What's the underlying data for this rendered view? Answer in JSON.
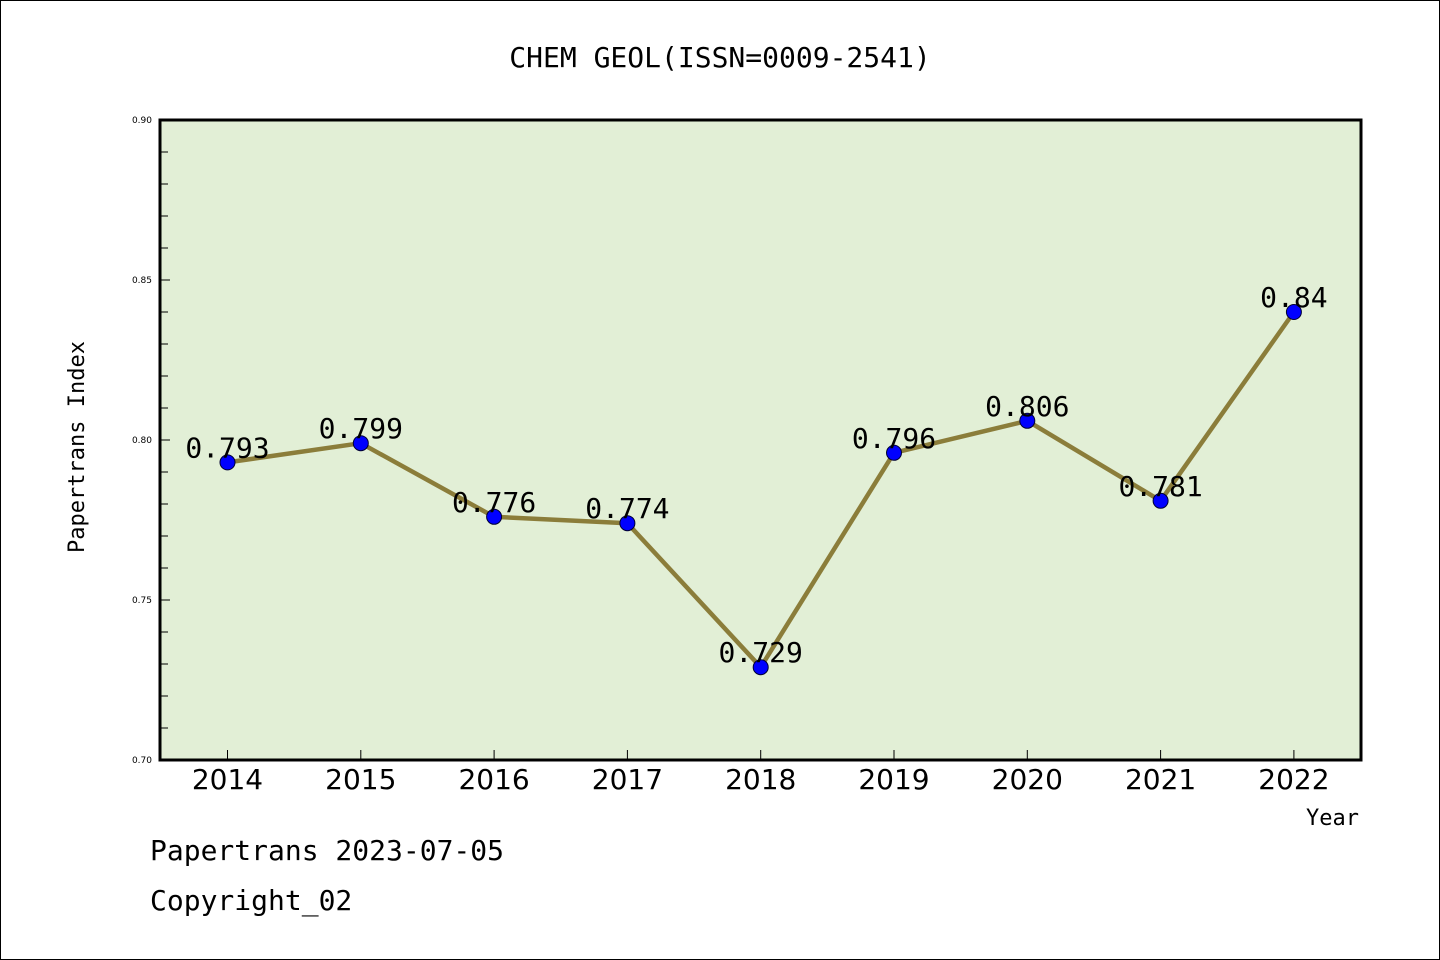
{
  "chart_data": {
    "type": "line",
    "title": "CHEM GEOL(ISSN=0009-2541)",
    "xlabel": "Year",
    "ylabel": "Papertrans Index",
    "categories": [
      "2014",
      "2015",
      "2016",
      "2017",
      "2018",
      "2019",
      "2020",
      "2021",
      "2022"
    ],
    "values": [
      0.793,
      0.799,
      0.776,
      0.774,
      0.729,
      0.796,
      0.806,
      0.781,
      0.84
    ],
    "data_labels": [
      "0.793",
      "0.799",
      "0.776",
      "0.774",
      "0.729",
      "0.796",
      "0.806",
      "0.781",
      "0.84"
    ],
    "ylim": [
      0.7,
      0.9
    ],
    "yticks": [
      "0.70",
      "0.75",
      "0.80",
      "0.85",
      "0.90"
    ],
    "grid": false,
    "colors": {
      "plot_background": "#e2efd6",
      "line": "#8b7d3a",
      "marker": "#0000ff"
    }
  },
  "footer": {
    "line1": "Papertrans 2023-07-05",
    "line2": "Copyright_02"
  }
}
